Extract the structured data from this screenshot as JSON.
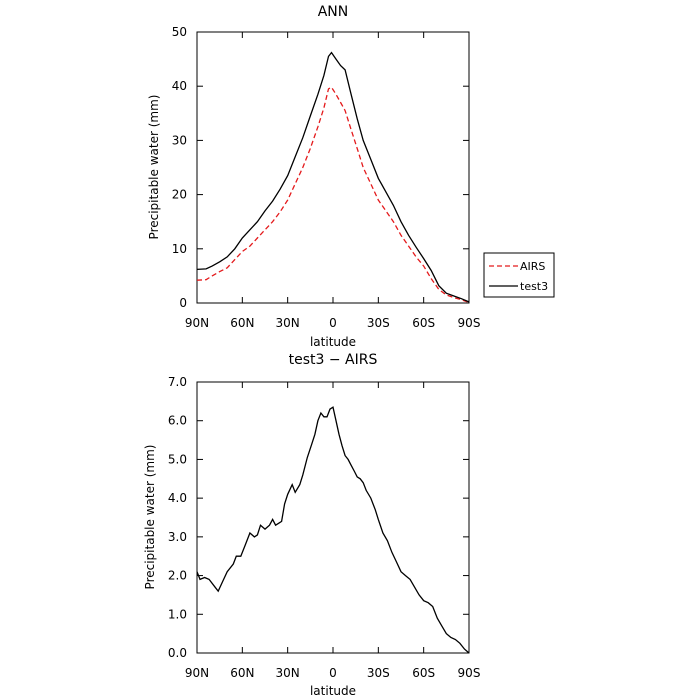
{
  "colors": {
    "AIRS": "#e41a1c",
    "test3": "#000000"
  },
  "chart_data": [
    {
      "type": "line",
      "title": "ANN",
      "xlabel": "latitude",
      "ylabel": "Precipitable water (mm)",
      "xlim": [
        90,
        -90
      ],
      "ylim": [
        0,
        50
      ],
      "xticks": [
        90,
        60,
        30,
        0,
        -30,
        -60,
        -90
      ],
      "xtick_labels": [
        "90N",
        "60N",
        "30N",
        "0",
        "30S",
        "60S",
        "90S"
      ],
      "yticks": [
        0,
        10,
        20,
        30,
        40,
        50
      ],
      "ytick_labels": [
        "0",
        "10",
        "20",
        "30",
        "40",
        "50"
      ],
      "legend": {
        "placement": "outside-right",
        "entries": [
          "AIRS",
          "test3"
        ]
      },
      "series": [
        {
          "name": "AIRS",
          "style": "dashed",
          "points": [
            [
              90,
              4.2
            ],
            [
              84,
              4.3
            ],
            [
              80,
              5.0
            ],
            [
              75,
              5.8
            ],
            [
              70,
              6.5
            ],
            [
              65,
              8.0
            ],
            [
              60,
              9.5
            ],
            [
              55,
              10.5
            ],
            [
              50,
              12.0
            ],
            [
              45,
              13.5
            ],
            [
              40,
              15.0
            ],
            [
              35,
              16.8
            ],
            [
              30,
              19.0
            ],
            [
              25,
              22.0
            ],
            [
              20,
              25.0
            ],
            [
              15,
              28.5
            ],
            [
              10,
              32.5
            ],
            [
              6,
              36.0
            ],
            [
              3,
              39.5
            ],
            [
              1,
              39.8
            ],
            [
              -2,
              38.5
            ],
            [
              -5,
              37.0
            ],
            [
              -8,
              35.5
            ],
            [
              -12,
              32.0
            ],
            [
              -16,
              28.5
            ],
            [
              -20,
              25.0
            ],
            [
              -25,
              22.0
            ],
            [
              -30,
              19.0
            ],
            [
              -35,
              17.0
            ],
            [
              -40,
              15.0
            ],
            [
              -45,
              12.5
            ],
            [
              -50,
              10.5
            ],
            [
              -55,
              8.5
            ],
            [
              -60,
              6.8
            ],
            [
              -65,
              4.5
            ],
            [
              -70,
              2.5
            ],
            [
              -75,
              1.5
            ],
            [
              -80,
              1.0
            ],
            [
              -85,
              0.6
            ],
            [
              -90,
              0.1
            ]
          ]
        },
        {
          "name": "test3",
          "style": "solid",
          "points": [
            [
              90,
              6.2
            ],
            [
              84,
              6.3
            ],
            [
              80,
              6.8
            ],
            [
              75,
              7.6
            ],
            [
              70,
              8.5
            ],
            [
              65,
              10.0
            ],
            [
              60,
              12.0
            ],
            [
              55,
              13.5
            ],
            [
              50,
              15.0
            ],
            [
              45,
              17.0
            ],
            [
              40,
              18.8
            ],
            [
              35,
              21.0
            ],
            [
              30,
              23.5
            ],
            [
              25,
              27.0
            ],
            [
              20,
              30.5
            ],
            [
              15,
              34.5
            ],
            [
              10,
              38.5
            ],
            [
              6,
              42.0
            ],
            [
              3,
              45.5
            ],
            [
              1,
              46.2
            ],
            [
              -2,
              45.0
            ],
            [
              -5,
              43.8
            ],
            [
              -8,
              43.0
            ],
            [
              -12,
              38.5
            ],
            [
              -16,
              34.0
            ],
            [
              -20,
              30.0
            ],
            [
              -25,
              26.5
            ],
            [
              -30,
              23.0
            ],
            [
              -35,
              20.5
            ],
            [
              -40,
              18.0
            ],
            [
              -45,
              15.0
            ],
            [
              -50,
              12.5
            ],
            [
              -55,
              10.3
            ],
            [
              -60,
              8.2
            ],
            [
              -65,
              6.0
            ],
            [
              -70,
              3.2
            ],
            [
              -75,
              1.8
            ],
            [
              -80,
              1.3
            ],
            [
              -85,
              0.8
            ],
            [
              -90,
              0.2
            ]
          ]
        }
      ]
    },
    {
      "type": "line",
      "title": "test3 − AIRS",
      "xlabel": "latitude",
      "ylabel": "Precipitable water (mm)",
      "xlim": [
        90,
        -90
      ],
      "ylim": [
        0,
        7
      ],
      "xticks": [
        90,
        60,
        30,
        0,
        -30,
        -60,
        -90
      ],
      "xtick_labels": [
        "90N",
        "60N",
        "30N",
        "0",
        "30S",
        "60S",
        "90S"
      ],
      "yticks": [
        0,
        1,
        2,
        3,
        4,
        5,
        6,
        7
      ],
      "ytick_labels": [
        "0.0",
        "1.0",
        "2.0",
        "3.0",
        "4.0",
        "5.0",
        "6.0",
        "7.0"
      ],
      "series": [
        {
          "points": [
            [
              90,
              2.1
            ],
            [
              88,
              1.9
            ],
            [
              85,
              1.95
            ],
            [
              82,
              1.9
            ],
            [
              78,
              1.7
            ],
            [
              76,
              1.6
            ],
            [
              73,
              1.85
            ],
            [
              70,
              2.1
            ],
            [
              66,
              2.3
            ],
            [
              64,
              2.5
            ],
            [
              61,
              2.5
            ],
            [
              58,
              2.8
            ],
            [
              55,
              3.1
            ],
            [
              52,
              3.0
            ],
            [
              50,
              3.05
            ],
            [
              48,
              3.3
            ],
            [
              45,
              3.2
            ],
            [
              42,
              3.3
            ],
            [
              40,
              3.45
            ],
            [
              38,
              3.3
            ],
            [
              36,
              3.35
            ],
            [
              34,
              3.4
            ],
            [
              32,
              3.85
            ],
            [
              30,
              4.1
            ],
            [
              27,
              4.35
            ],
            [
              25,
              4.15
            ],
            [
              22,
              4.35
            ],
            [
              20,
              4.6
            ],
            [
              17,
              5.05
            ],
            [
              14,
              5.4
            ],
            [
              12,
              5.65
            ],
            [
              10,
              6.0
            ],
            [
              8,
              6.2
            ],
            [
              6,
              6.1
            ],
            [
              4,
              6.1
            ],
            [
              2,
              6.3
            ],
            [
              0,
              6.35
            ],
            [
              -2,
              6.0
            ],
            [
              -4,
              5.65
            ],
            [
              -6,
              5.35
            ],
            [
              -8,
              5.1
            ],
            [
              -10,
              5.0
            ],
            [
              -12,
              4.85
            ],
            [
              -14,
              4.7
            ],
            [
              -16,
              4.55
            ],
            [
              -18,
              4.5
            ],
            [
              -20,
              4.4
            ],
            [
              -22,
              4.2
            ],
            [
              -25,
              4.0
            ],
            [
              -28,
              3.7
            ],
            [
              -30,
              3.45
            ],
            [
              -33,
              3.1
            ],
            [
              -36,
              2.9
            ],
            [
              -39,
              2.6
            ],
            [
              -42,
              2.35
            ],
            [
              -45,
              2.1
            ],
            [
              -48,
              2.0
            ],
            [
              -51,
              1.9
            ],
            [
              -54,
              1.7
            ],
            [
              -57,
              1.5
            ],
            [
              -60,
              1.35
            ],
            [
              -63,
              1.3
            ],
            [
              -66,
              1.2
            ],
            [
              -69,
              0.9
            ],
            [
              -72,
              0.7
            ],
            [
              -75,
              0.5
            ],
            [
              -78,
              0.4
            ],
            [
              -81,
              0.35
            ],
            [
              -84,
              0.25
            ],
            [
              -87,
              0.1
            ],
            [
              -90,
              0.0
            ]
          ]
        }
      ]
    }
  ]
}
